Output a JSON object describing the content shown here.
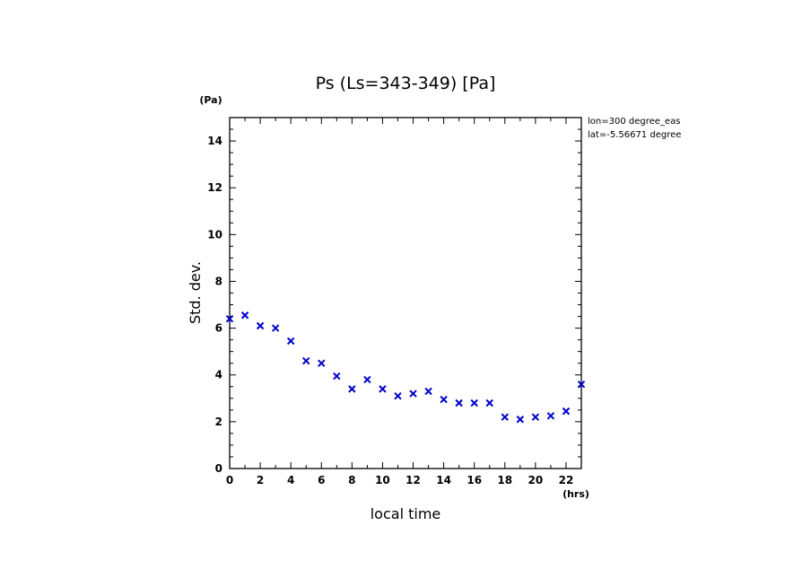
{
  "chart_data": {
    "type": "scatter",
    "title": "Ps (Ls=343-349) [Pa]",
    "xlabel": "local time",
    "ylabel": "Std. dev.",
    "x_unit": "(hrs)",
    "y_unit": "(Pa)",
    "annotations": [
      "lon=300 degree_eas",
      "lat=-5.56671 degree"
    ],
    "xlim": [
      0,
      23
    ],
    "ylim": [
      0,
      15
    ],
    "xticks": [
      0,
      2,
      4,
      6,
      8,
      10,
      12,
      14,
      16,
      18,
      20,
      22
    ],
    "yticks": [
      0,
      2,
      4,
      6,
      8,
      10,
      12,
      14
    ],
    "marker": "x",
    "color": "#0000cc",
    "x": [
      0,
      1,
      2,
      3,
      4,
      5,
      6,
      7,
      8,
      9,
      10,
      11,
      12,
      13,
      14,
      15,
      16,
      17,
      18,
      19,
      20,
      21,
      22,
      23
    ],
    "y": [
      6.4,
      6.55,
      6.1,
      6.0,
      5.45,
      4.6,
      4.5,
      3.95,
      3.4,
      3.8,
      3.4,
      3.1,
      3.2,
      3.3,
      2.95,
      2.8,
      2.8,
      2.8,
      2.2,
      2.1,
      2.2,
      2.25,
      2.45,
      3.6
    ]
  }
}
